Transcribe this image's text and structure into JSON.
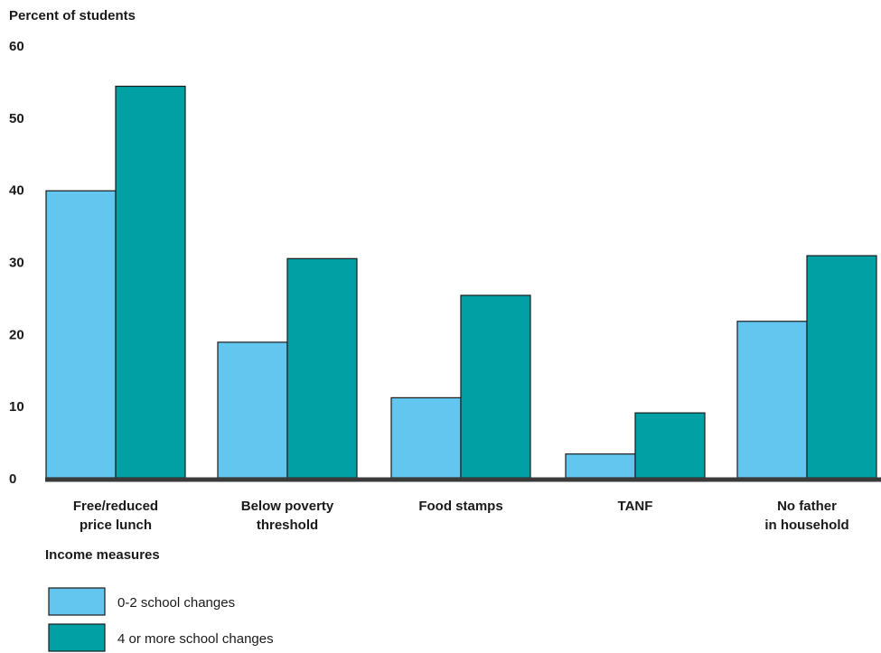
{
  "chart_data": {
    "type": "bar",
    "ylabel": "Percent of students",
    "xlabel": "Income measures",
    "ylim": [
      0,
      60
    ],
    "yticks": [
      "0",
      "10",
      "20",
      "30",
      "40",
      "50",
      "60"
    ],
    "categories": [
      [
        "Free/reduced",
        "price lunch"
      ],
      [
        "Below poverty",
        "threshold"
      ],
      [
        "Food stamps"
      ],
      [
        "TANF"
      ],
      [
        "No father",
        "in household"
      ]
    ],
    "series": [
      {
        "name": "0-2 school changes",
        "color": "#63c6ee",
        "values": [
          39.8,
          18.8,
          11.1,
          3.3,
          21.7
        ]
      },
      {
        "name": "4 or more school changes",
        "color": "#00a0a4",
        "values": [
          54.3,
          30.4,
          25.3,
          9.0,
          30.8
        ]
      }
    ],
    "grid": false,
    "legend_position": "bottom-left"
  }
}
